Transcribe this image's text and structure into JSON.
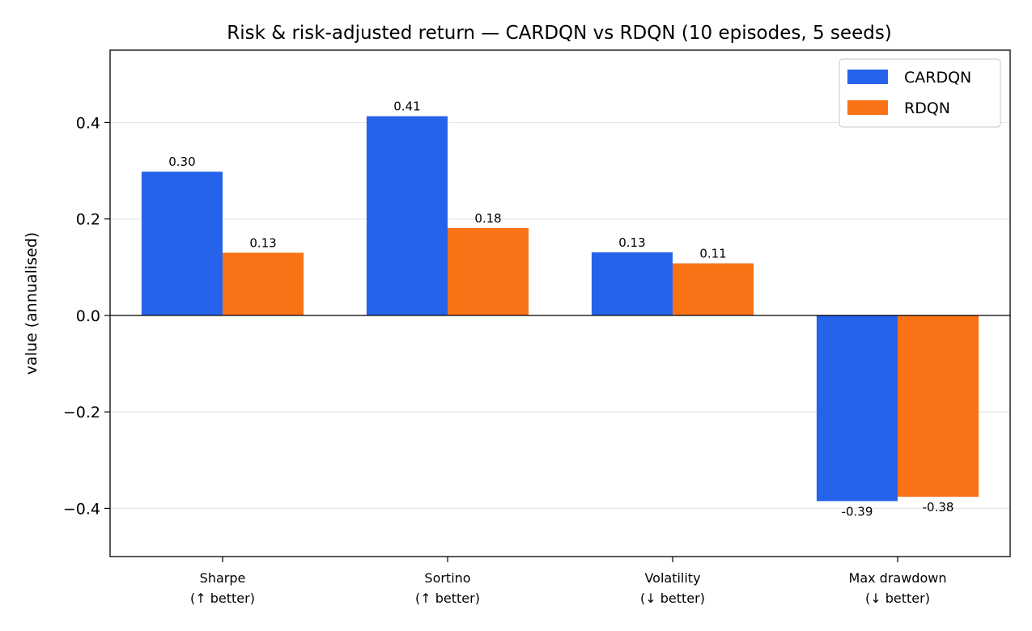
{
  "chart_data": {
    "type": "bar",
    "title": "Risk & risk-adjusted return — CARDQN vs RDQN (10 episodes, 5 seeds)",
    "xlabel": "",
    "ylabel": "value (annualised)",
    "categories": [
      [
        "Sharpe",
        "(↑ better)"
      ],
      [
        "Sortino",
        "(↑ better)"
      ],
      [
        "Volatility",
        "(↓ better)"
      ],
      [
        "Max drawdown",
        "(↓ better)"
      ]
    ],
    "series": [
      {
        "name": "CARDQN",
        "color": "#2563eb",
        "values": [
          0.298,
          0.413,
          0.131,
          -0.385
        ],
        "labels": [
          "0.30",
          "0.41",
          "0.13",
          "-0.39"
        ]
      },
      {
        "name": "RDQN",
        "color": "#f97316",
        "values": [
          0.13,
          0.181,
          0.108,
          -0.376
        ],
        "labels": [
          "0.13",
          "0.18",
          "0.11",
          "-0.38"
        ]
      }
    ],
    "ylim": [
      -0.5,
      0.55
    ],
    "yticks": [
      -0.4,
      -0.2,
      0.0,
      0.2,
      0.4
    ],
    "ytick_labels": [
      "−0.4",
      "−0.2",
      "0.0",
      "0.2",
      "0.4"
    ],
    "grid": "y",
    "legend_position": "top-right"
  }
}
